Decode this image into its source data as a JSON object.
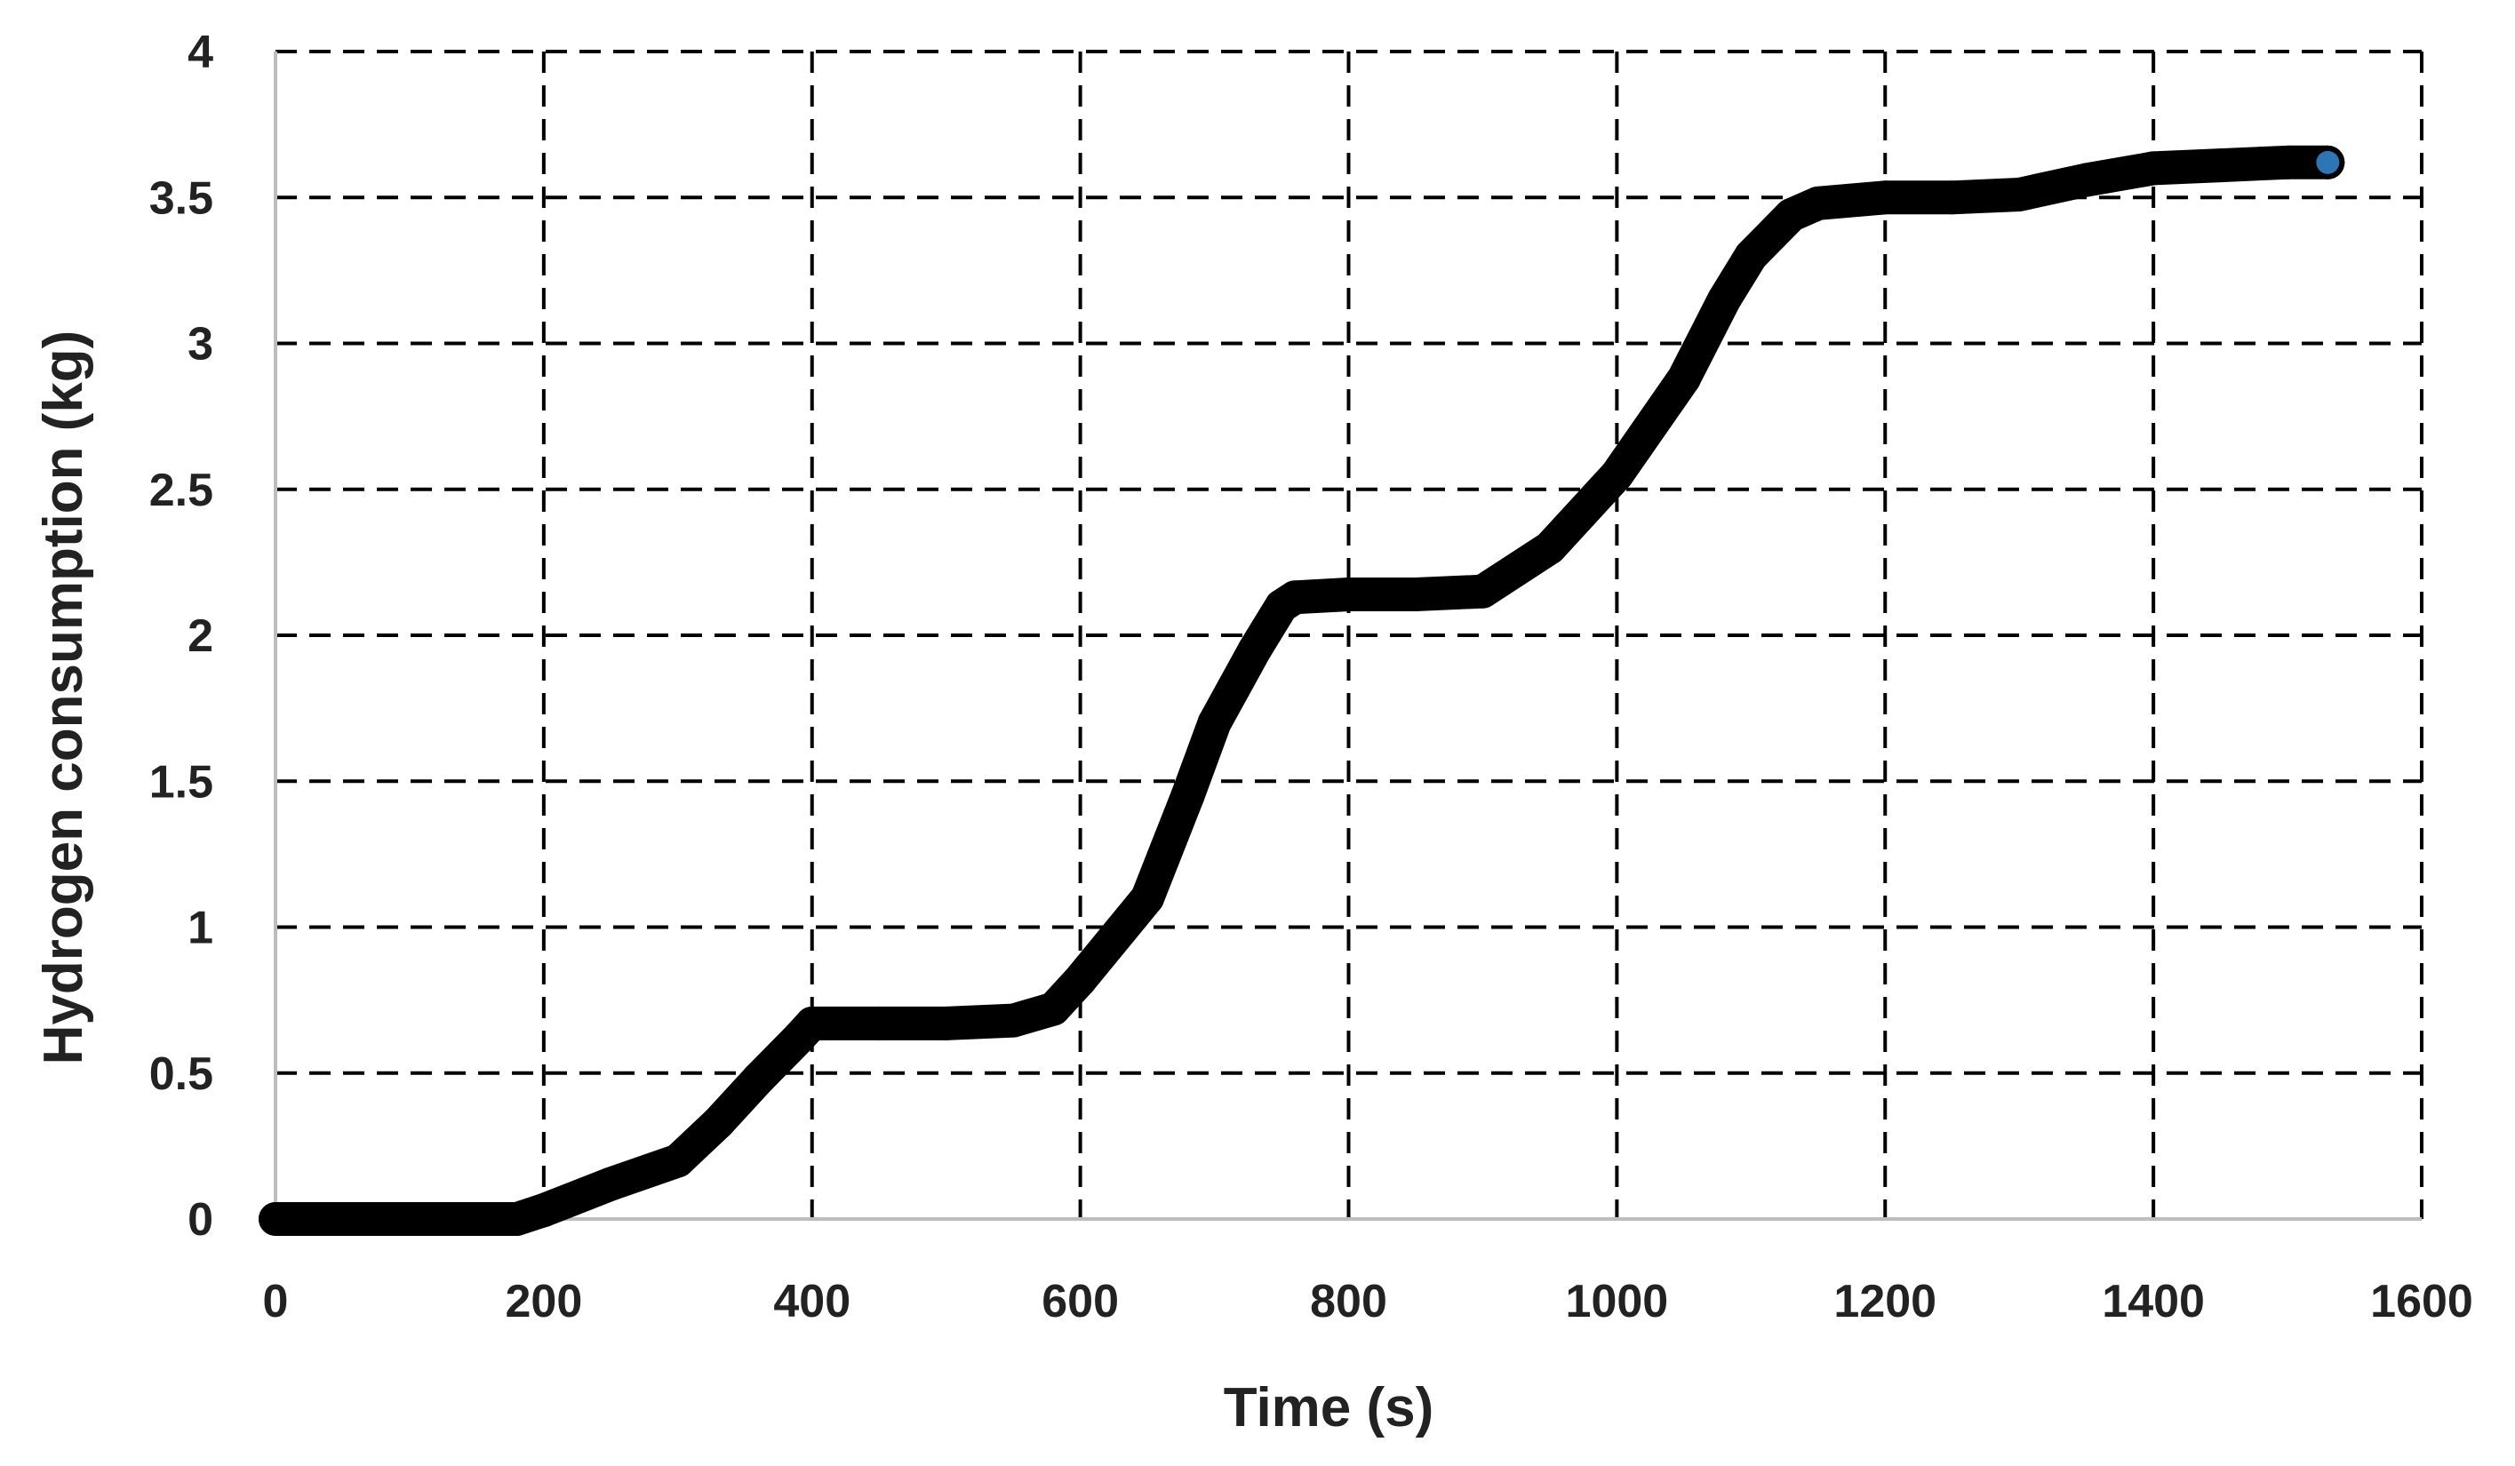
{
  "chart_data": {
    "type": "scatter",
    "title": "",
    "xlabel": "Time (s)",
    "ylabel": "Hydrogen consumption (kg)",
    "xlim": [
      0,
      1600
    ],
    "ylim": [
      0,
      4
    ],
    "x_ticks": [
      0,
      200,
      400,
      600,
      800,
      1000,
      1200,
      1400,
      1600
    ],
    "y_ticks": [
      0,
      0.5,
      1,
      1.5,
      2,
      2.5,
      3,
      3.5,
      4
    ],
    "x_tick_labels": [
      "0",
      "200",
      "400",
      "600",
      "800",
      "1000",
      "1200",
      "1400",
      "1600"
    ],
    "y_tick_labels": [
      "0",
      "0.5",
      "1",
      "1.5",
      "2",
      "2.5",
      "3",
      "3.5",
      "4"
    ],
    "grid": true,
    "legend": "none",
    "series": [
      {
        "color": "#000000",
        "end_marker_color": "#2e75b6",
        "x": [
          0,
          100,
          180,
          200,
          250,
          300,
          330,
          360,
          390,
          400,
          450,
          500,
          550,
          580,
          600,
          650,
          680,
          700,
          730,
          750,
          760,
          800,
          850,
          900,
          950,
          1000,
          1050,
          1080,
          1100,
          1130,
          1150,
          1200,
          1250,
          1300,
          1350,
          1400,
          1450,
          1500,
          1530
        ],
        "y": [
          0,
          0,
          0,
          0.03,
          0.12,
          0.2,
          0.33,
          0.48,
          0.62,
          0.67,
          0.67,
          0.67,
          0.68,
          0.72,
          0.82,
          1.1,
          1.45,
          1.7,
          1.95,
          2.1,
          2.13,
          2.14,
          2.14,
          2.15,
          2.3,
          2.55,
          2.88,
          3.15,
          3.3,
          3.44,
          3.48,
          3.5,
          3.5,
          3.51,
          3.56,
          3.6,
          3.61,
          3.62,
          3.62
        ]
      }
    ]
  }
}
